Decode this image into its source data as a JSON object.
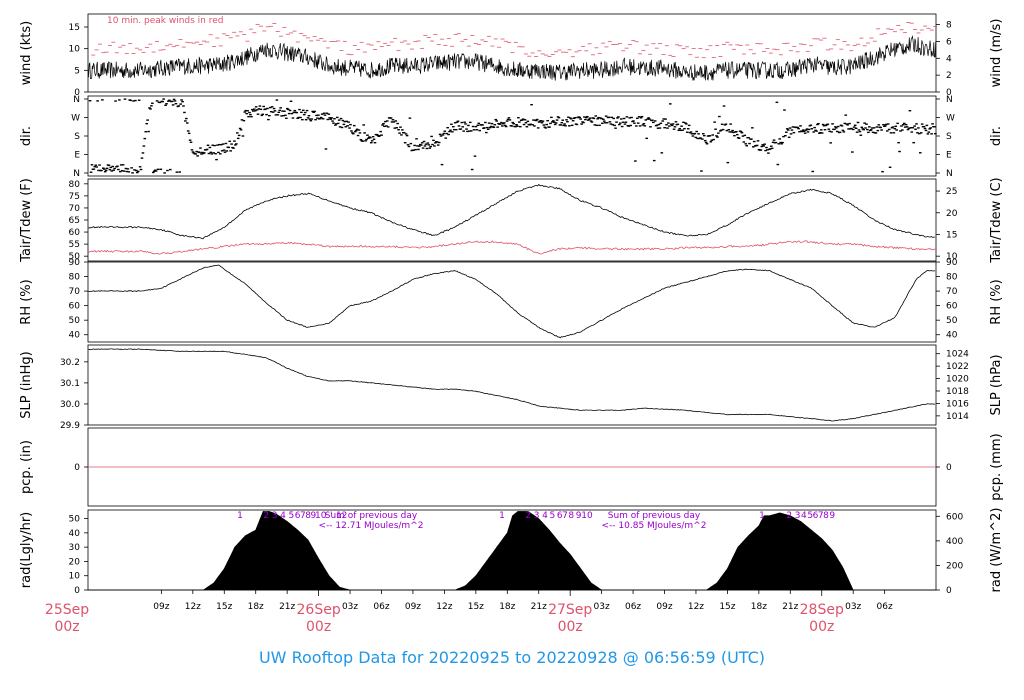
{
  "footer": {
    "title": "UW Rooftop Data for 20220925  to  20220928 @ 06:56:59  (UTC)"
  },
  "colors": {
    "series_main": "#000000",
    "peak_wind": "#df536b",
    "dewpoint": "#df536b",
    "annotation": "#9900cc",
    "day_label": "#df536b",
    "title": "#2297e6"
  },
  "chart_data": [
    {
      "id": "wind",
      "type": "line",
      "ylabel_left": "wind (kts)",
      "ylabel_right": "wind (m/s)",
      "ylim": [
        0,
        18
      ],
      "yticks_left": [
        "0",
        "5",
        "10",
        "15"
      ],
      "yticks_right": [
        "0",
        "2",
        "4",
        "6",
        "8"
      ],
      "annotation": "10 min. peak winds in red",
      "series": [
        {
          "name": "",
          "x_hours": [
            0,
            2,
            4,
            6,
            8,
            10,
            12,
            14,
            16,
            18,
            20,
            22,
            24,
            26,
            28,
            30,
            32,
            34,
            36,
            38,
            40,
            42,
            44,
            46,
            48,
            50,
            52,
            54,
            56,
            58,
            60,
            62,
            64,
            66,
            68,
            70,
            72,
            74,
            75
          ],
          "values": [
            5,
            5.5,
            6,
            6,
            6.5,
            8,
            10,
            9,
            8,
            6,
            5.5,
            5,
            6,
            6,
            6.5,
            7,
            7,
            6,
            5,
            5,
            4.5,
            5,
            5,
            6,
            5.5,
            5.5,
            4.5,
            4.5,
            5,
            5,
            5,
            5,
            6.5,
            5.5,
            6,
            8,
            10,
            11,
            10
          ]
        },
        {
          "name": "",
          "x_hours": [
            0,
            2,
            4,
            6,
            8,
            10,
            12,
            14,
            16,
            18,
            20,
            22,
            24,
            26,
            28,
            30,
            32,
            34,
            36,
            38,
            40,
            42,
            44,
            46,
            48,
            50,
            52,
            54,
            56,
            58,
            60,
            62,
            64,
            66,
            68,
            70,
            72,
            74,
            75
          ],
          "values": [
            10,
            11,
            11,
            12,
            12,
            13,
            15,
            14,
            12,
            11,
            10,
            10,
            11,
            11,
            12,
            12,
            12,
            11,
            10,
            9,
            9,
            10,
            10,
            11,
            10,
            10,
            9,
            9,
            10,
            10,
            10,
            10,
            11,
            11,
            11,
            13,
            15,
            15,
            14
          ]
        }
      ]
    },
    {
      "id": "dir",
      "type": "scatter",
      "ylabel_left": "dir.",
      "ylabel_right": "dir.",
      "ylim": [
        0,
        360
      ],
      "yticks": [
        "N",
        "E",
        "S",
        "W",
        "N"
      ],
      "series": [
        {
          "name": "",
          "x_hours": [
            0,
            1,
            2,
            3,
            4,
            5,
            6,
            7,
            8,
            9,
            10,
            11,
            12,
            13,
            14,
            16,
            18,
            20,
            22,
            24,
            26,
            28,
            30,
            32,
            34,
            36,
            38,
            40,
            42,
            44,
            46,
            48,
            50,
            52,
            54,
            56,
            58,
            60,
            62,
            64,
            66,
            68,
            70,
            72,
            74
          ],
          "values": [
            15,
            350,
            355,
            350,
            345,
            100,
            110,
            115,
            120,
            140,
            290,
            300,
            305,
            300,
            290,
            280,
            270,
            220,
            150,
            260,
            120,
            140,
            230,
            220,
            240,
            250,
            240,
            250,
            260,
            255,
            250,
            250,
            240,
            220,
            160,
            230,
            150,
            120,
            200,
            215,
            220,
            225,
            215,
            220,
            215
          ]
        }
      ]
    },
    {
      "id": "temp",
      "type": "line",
      "ylabel_left": "Tair/Tdew (F)",
      "ylabel_right": "Tair/Tdew (C)",
      "ylim": [
        48,
        82
      ],
      "yticks_left": [
        "50",
        "55",
        "60",
        "65",
        "70",
        "75",
        "80"
      ],
      "yticks_right": [
        "10",
        "15",
        "20",
        "25"
      ],
      "series": [
        {
          "name": "",
          "x_hours": [
            0,
            2,
            4,
            6,
            8,
            10,
            12,
            14,
            16,
            18,
            20,
            22,
            24,
            26,
            28,
            30,
            32,
            34,
            36,
            38,
            40,
            42,
            44,
            46,
            48,
            50,
            52,
            54,
            56,
            58,
            60,
            62,
            64,
            66,
            68,
            70,
            72,
            74,
            75
          ],
          "values": [
            62,
            61,
            58.5,
            57.5,
            62,
            69,
            73,
            75,
            76,
            73,
            70,
            68,
            64,
            61,
            58.5,
            62,
            67,
            72,
            77,
            79.5,
            78,
            73,
            70,
            66,
            63,
            60,
            58.5,
            59,
            63,
            68,
            72,
            76,
            77.5,
            76,
            71,
            65,
            61,
            59,
            58
          ]
        },
        {
          "name": "",
          "x_hours": [
            0,
            2,
            4,
            6,
            8,
            10,
            12,
            14,
            16,
            18,
            20,
            22,
            24,
            26,
            28,
            30,
            32,
            34,
            36,
            38,
            40,
            42,
            44,
            46,
            48,
            50,
            52,
            54,
            56,
            58,
            60,
            62,
            64,
            66,
            68,
            70,
            72,
            74,
            75
          ],
          "values": [
            52,
            51,
            52,
            53,
            54,
            55,
            55,
            55.5,
            55,
            54,
            54,
            54,
            54,
            53.5,
            54,
            55,
            56,
            56,
            55,
            51,
            53,
            53.5,
            53,
            53,
            53,
            53,
            53.5,
            53.5,
            54,
            54,
            55,
            56,
            56,
            55,
            55,
            54,
            53.5,
            53,
            53
          ]
        }
      ]
    },
    {
      "id": "rh",
      "type": "line",
      "ylabel_left": "RH (%)",
      "ylabel_right": "RH (%)",
      "ylim": [
        35,
        90
      ],
      "yticks_left": [
        "40",
        "50",
        "60",
        "70",
        "80",
        "90"
      ],
      "yticks_right": [
        "40",
        "50",
        "60",
        "70",
        "80",
        "90"
      ],
      "series": [
        {
          "name": "",
          "x_hours": [
            0,
            2,
            4,
            6,
            7.5,
            8,
            10,
            12,
            14,
            16,
            18,
            20,
            22,
            24,
            26,
            28,
            30,
            32,
            34,
            36,
            38,
            40,
            42,
            44,
            46,
            48,
            50,
            52,
            54,
            56,
            58,
            60,
            62,
            64,
            66,
            68,
            70,
            72,
            73,
            74,
            75
          ],
          "values": [
            70,
            72,
            79,
            86,
            88,
            85,
            75,
            62,
            50,
            45,
            48,
            60,
            63,
            70,
            78,
            82,
            84,
            78,
            68,
            55,
            45,
            38,
            42,
            50,
            58,
            65,
            72,
            76,
            80,
            84,
            85,
            84,
            78,
            72,
            60,
            48,
            45,
            52,
            65,
            78,
            84
          ]
        }
      ]
    },
    {
      "id": "slp",
      "type": "line",
      "ylabel_left": "SLP (inHg)",
      "ylabel_right": "SLP (hPa)",
      "ylim": [
        29.9,
        30.28
      ],
      "yticks_left": [
        "29.9",
        "30.0",
        "30.1",
        "30.2"
      ],
      "yticks_right": [
        "1014",
        "1016",
        "1018",
        "1020",
        "1022",
        "1024"
      ],
      "series": [
        {
          "name": "",
          "x_hours": [
            0,
            4,
            8,
            12,
            14,
            16,
            18,
            20,
            22,
            24,
            28,
            30,
            32,
            34,
            36,
            38,
            40,
            42,
            44,
            46,
            48,
            52,
            56,
            60,
            64,
            66,
            68,
            70,
            72,
            75
          ],
          "values": [
            30.26,
            30.25,
            30.25,
            30.22,
            30.17,
            30.13,
            30.11,
            30.11,
            30.1,
            30.09,
            30.07,
            30.07,
            30.06,
            30.04,
            30.02,
            29.99,
            29.98,
            29.97,
            29.97,
            29.97,
            29.98,
            29.97,
            29.95,
            29.95,
            29.93,
            29.92,
            29.93,
            29.95,
            29.97,
            30.0
          ]
        }
      ]
    },
    {
      "id": "pcp",
      "type": "line",
      "ylabel_left": "pcp. (in)",
      "ylabel_right": "pcp. (mm)",
      "ylim": [
        -1,
        1
      ],
      "yticks_left": [
        "0"
      ],
      "yticks_right": [
        "0"
      ],
      "series": [
        {
          "name": "",
          "x_hours": [
            0,
            75
          ],
          "values": [
            0,
            0
          ]
        }
      ]
    },
    {
      "id": "rad",
      "type": "area",
      "ylabel_left": "rad(Lgly/hr)",
      "ylabel_right": "rad (W/m^2)",
      "ylim": [
        0,
        56
      ],
      "yticks_left": [
        "0",
        "10",
        "20",
        "30",
        "40",
        "50"
      ],
      "yticks_right": [
        "0",
        "200",
        "400",
        "600"
      ],
      "series": [
        {
          "name": "",
          "x_hours": [
            6,
            7,
            8,
            9,
            10,
            11,
            11.7,
            12,
            12.3,
            13,
            14,
            15,
            16,
            17,
            18,
            19,
            20,
            30,
            31,
            32,
            33,
            34,
            35,
            35.5,
            36,
            37,
            38,
            39,
            40,
            41,
            42,
            43,
            44,
            54,
            55,
            56,
            57,
            58,
            59,
            59.5,
            60,
            61,
            62,
            63,
            64,
            65,
            66,
            67,
            68,
            75
          ],
          "values": [
            0,
            5,
            15,
            30,
            38,
            42,
            55,
            55,
            55,
            53,
            48,
            42,
            35,
            22,
            10,
            2,
            0,
            0,
            3,
            10,
            20,
            30,
            40,
            52,
            55,
            55,
            50,
            42,
            33,
            25,
            15,
            5,
            0,
            0,
            5,
            15,
            30,
            38,
            45,
            52,
            52,
            54,
            52,
            48,
            42,
            36,
            28,
            16,
            0,
            0
          ]
        }
      ],
      "annotations": [
        {
          "text": "Sum of previous day"
        },
        {
          "text": "<-- 12.71 MJoules/m^2"
        },
        {
          "text": "Sum of previous day"
        },
        {
          "text": "<-- 10.85 MJoules/m^2"
        }
      ],
      "hour_marks": [
        {
          "x_hours": 9.5,
          "label": "1"
        },
        {
          "x_hours": 12,
          "label": "2"
        },
        {
          "x_hours": 12.8,
          "label": "3"
        },
        {
          "x_hours": 13.6,
          "label": "4"
        },
        {
          "x_hours": 14.4,
          "label": "5"
        },
        {
          "x_hours": 15.0,
          "label": "6"
        },
        {
          "x_hours": 15.5,
          "label": "7"
        },
        {
          "x_hours": 16.0,
          "label": "8"
        },
        {
          "x_hours": 16.5,
          "label": "9"
        },
        {
          "x_hours": 17.2,
          "label": "10"
        },
        {
          "x_hours": 18.2,
          "label": "'"
        },
        {
          "x_hours": 19.2,
          "label": "12"
        },
        {
          "x_hours": 34.5,
          "label": "1"
        },
        {
          "x_hours": 37,
          "label": "2"
        },
        {
          "x_hours": 37.8,
          "label": "3"
        },
        {
          "x_hours": 38.6,
          "label": "4"
        },
        {
          "x_hours": 39.3,
          "label": "5"
        },
        {
          "x_hours": 40,
          "label": "6"
        },
        {
          "x_hours": 40.5,
          "label": "7"
        },
        {
          "x_hours": 41.1,
          "label": "8"
        },
        {
          "x_hours": 41.8,
          "label": "9"
        },
        {
          "x_hours": 42.6,
          "label": "10"
        },
        {
          "x_hours": 59.3,
          "label": "1"
        },
        {
          "x_hours": 61.9,
          "label": "2"
        },
        {
          "x_hours": 62.7,
          "label": "3"
        },
        {
          "x_hours": 63.3,
          "label": "4"
        },
        {
          "x_hours": 63.9,
          "label": "5"
        },
        {
          "x_hours": 64.4,
          "label": "6"
        },
        {
          "x_hours": 64.9,
          "label": "7"
        },
        {
          "x_hours": 65.4,
          "label": "8"
        },
        {
          "x_hours": 66.0,
          "label": "9"
        }
      ]
    }
  ],
  "x_axis": {
    "tick_labels": [
      {
        "x_hours": 2,
        "label": "09z"
      },
      {
        "x_hours": 5,
        "label": "12z"
      },
      {
        "x_hours": 8,
        "label": "15z"
      },
      {
        "x_hours": 11,
        "label": "18z"
      },
      {
        "x_hours": 14,
        "label": "21z"
      },
      {
        "x_hours": 20,
        "label": "03z"
      },
      {
        "x_hours": 23,
        "label": "06z"
      },
      {
        "x_hours": 26,
        "label": "09z"
      },
      {
        "x_hours": 29,
        "label": "12z"
      },
      {
        "x_hours": 32,
        "label": "15z"
      },
      {
        "x_hours": 35,
        "label": "18z"
      },
      {
        "x_hours": 38,
        "label": "21z"
      },
      {
        "x_hours": 44,
        "label": "03z"
      },
      {
        "x_hours": 47,
        "label": "06z"
      },
      {
        "x_hours": 50,
        "label": "09z"
      },
      {
        "x_hours": 53,
        "label": "12z"
      },
      {
        "x_hours": 56,
        "label": "15z"
      },
      {
        "x_hours": 59,
        "label": "18z"
      },
      {
        "x_hours": 62,
        "label": "21z"
      },
      {
        "x_hours": 68,
        "label": "03z"
      },
      {
        "x_hours": 71,
        "label": "06z"
      }
    ],
    "day_labels": [
      {
        "x_hours": -7,
        "label": "25Sep",
        "sub": "00z"
      },
      {
        "x_hours": 17,
        "label": "26Sep",
        "sub": "00z"
      },
      {
        "x_hours": 41,
        "label": "27Sep",
        "sub": "00z"
      },
      {
        "x_hours": 65,
        "label": "28Sep",
        "sub": "00z"
      }
    ]
  }
}
